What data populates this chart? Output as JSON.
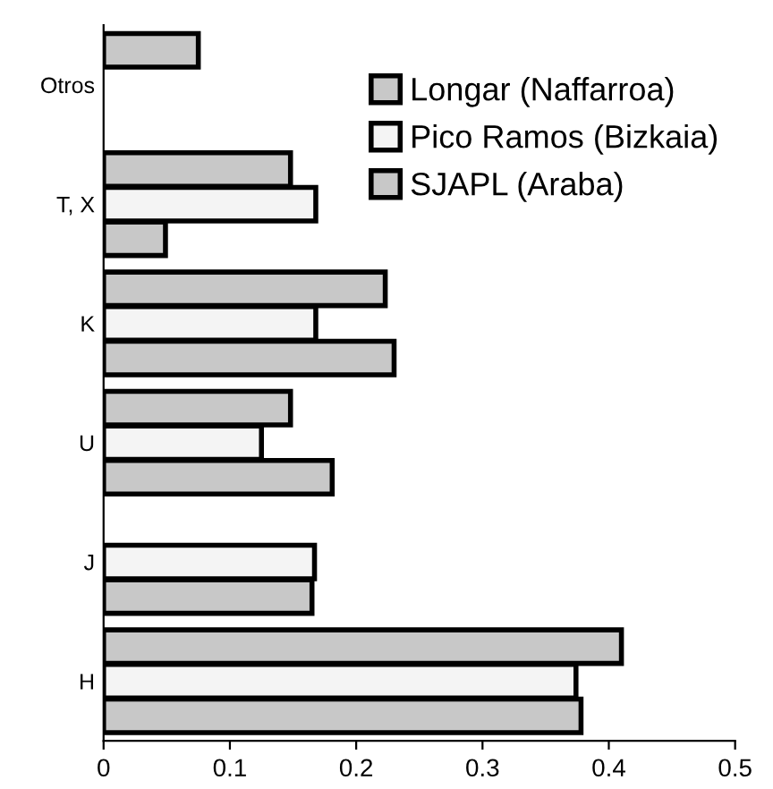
{
  "chart_data": {
    "type": "bar",
    "orientation": "horizontal",
    "categories": [
      "Otros",
      "T, X",
      "K",
      "U",
      "J",
      "H"
    ],
    "series": [
      {
        "name": "Longar (Naffarroa)",
        "color": "#c8c8c8",
        "values": [
          0.075,
          0.148,
          0.223,
          0.148,
          null,
          0.41
        ]
      },
      {
        "name": "Pico Ramos (Bizkaia)",
        "color": "#f4f4f4",
        "values": [
          null,
          0.168,
          0.168,
          0.125,
          0.167,
          0.374
        ]
      },
      {
        "name": "SJAPL (Araba)",
        "color": "#c8c8c8",
        "values": [
          null,
          0.049,
          0.23,
          0.181,
          0.165,
          0.378
        ]
      }
    ],
    "xlim": [
      0,
      0.5
    ],
    "xticks": [
      0,
      0.1,
      0.2,
      0.3,
      0.4,
      0.5
    ],
    "grid": false,
    "legend": "top right"
  }
}
